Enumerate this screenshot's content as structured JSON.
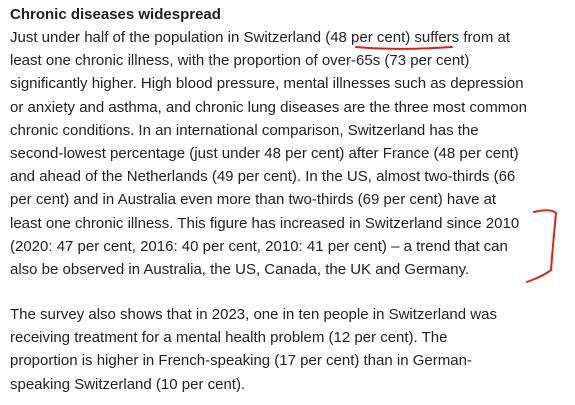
{
  "article": {
    "heading": "Chronic diseases widespread",
    "paragraph1_lines": [
      "Just under half of the population in Switzerland (48 per cent) suffers from at",
      "least one chronic illness, with the proportion of over-65s (73 per cent)",
      "significantly higher. High blood pressure, mental illnesses such as depression",
      "or anxiety and asthma, and chronic lung diseases are the three most common",
      "chronic conditions. In an international comparison, Switzerland has the",
      "second-lowest percentage (just under 48 per cent) after France (48 per cent)",
      "and ahead of the Netherlands (49 per cent). In the US, almost two-thirds (66",
      "per cent) and in Australia even more than two-thirds (69 per cent) have at",
      "least one chronic illness. This figure has increased in Switzerland since 2010",
      "(2020: 47 per cent, 2016: 40 per cent, 2010: 41 per cent) – a trend that can",
      "also be observed in Australia, the US, Canada, the UK and Germany."
    ],
    "paragraph2_lines": [
      "The survey also shows that in 2023, one in ten people in Switzerland was",
      "receiving treatment for a mental health problem (12 per cent). The",
      "proportion is higher in French-speaking (17 per cent) than in German-",
      "speaking Switzerland (10 per cent)."
    ]
  },
  "annotations": {
    "color": "#e0201b"
  }
}
